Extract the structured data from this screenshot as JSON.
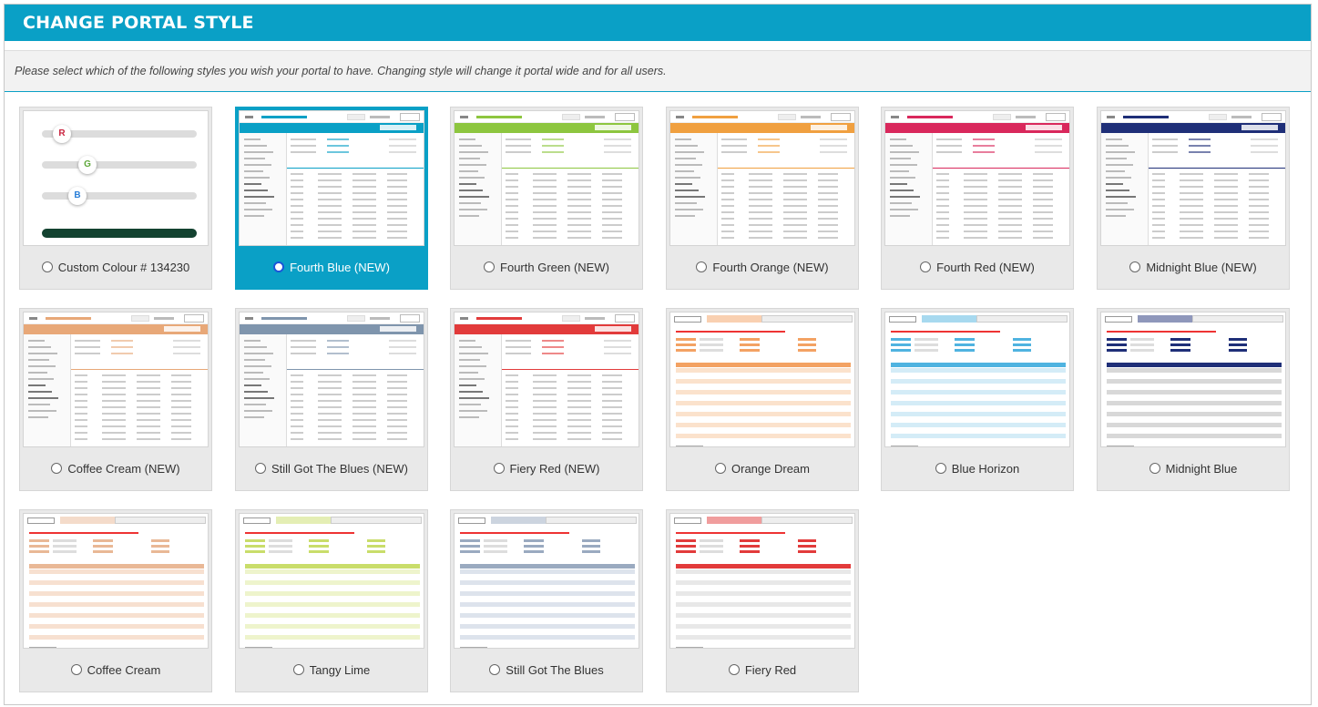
{
  "header": {
    "title": "CHANGE PORTAL STYLE"
  },
  "instructions": "Please select which of the following styles you wish your portal to have. Changing style will change it portal wide and for all users.",
  "custom": {
    "label": "Custom Colour  # 134230",
    "r_label": "R",
    "g_label": "G",
    "b_label": "B",
    "r_color": "#c9243f",
    "g_color": "#5ea83a",
    "b_color": "#2a7fd8",
    "swatch_color": "#134230"
  },
  "selected": "Fourth Blue (NEW)",
  "styles": [
    {
      "label": "Fourth Blue (NEW)",
      "kind": "modern",
      "accent": "#0aa0c6"
    },
    {
      "label": "Fourth Green (NEW)",
      "kind": "modern",
      "accent": "#8dc63f"
    },
    {
      "label": "Fourth Orange (NEW)",
      "kind": "modern",
      "accent": "#f0a040"
    },
    {
      "label": "Fourth Red (NEW)",
      "kind": "modern",
      "accent": "#d9285c"
    },
    {
      "label": "Midnight Blue (NEW)",
      "kind": "modern",
      "accent": "#1f2f78"
    },
    {
      "label": "Coffee Cream (NEW)",
      "kind": "modern",
      "accent": "#e8a878"
    },
    {
      "label": "Still Got The Blues (NEW)",
      "kind": "modern",
      "accent": "#7f95ad"
    },
    {
      "label": "Fiery Red (NEW)",
      "kind": "modern",
      "accent": "#e23b3b"
    },
    {
      "label": "Orange Dream",
      "kind": "classic",
      "accent": "#f3a263",
      "row": "#fbe2cc"
    },
    {
      "label": "Blue Horizon",
      "kind": "classic",
      "accent": "#4fb3e0",
      "row": "#d4ecf7"
    },
    {
      "label": "Midnight Blue",
      "kind": "classic",
      "accent": "#1f2f78",
      "row": "#d8d8d8"
    },
    {
      "label": "Coffee Cream",
      "kind": "classic",
      "accent": "#e9b896",
      "row": "#f7e0d0"
    },
    {
      "label": "Tangy Lime",
      "kind": "classic",
      "accent": "#c9dd6a",
      "row": "#eef4cc"
    },
    {
      "label": "Still Got The Blues",
      "kind": "classic",
      "accent": "#9aaac0",
      "row": "#dde3ec"
    },
    {
      "label": "Fiery Red",
      "kind": "classic",
      "accent": "#e23b3b",
      "row": "#e8e8e8"
    }
  ]
}
